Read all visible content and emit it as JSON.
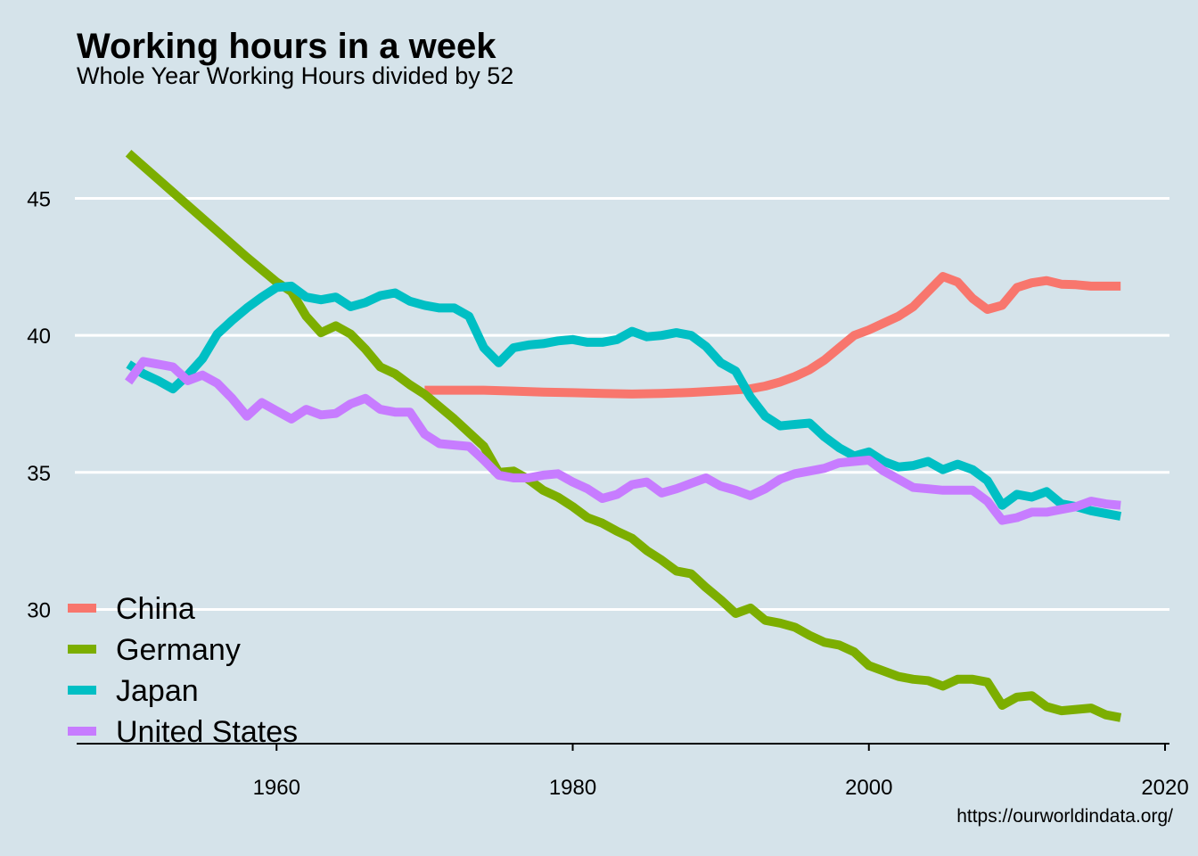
{
  "title": "Working hours in a week",
  "subtitle": "Whole Year Working Hours divided by 52",
  "caption": "https://ourworldindata.org/",
  "chart_data": {
    "type": "line",
    "title": "Working hours in a week",
    "subtitle": "Whole Year Working Hours divided by 52",
    "xlabel": "",
    "ylabel": "",
    "xlim": [
      1946.5,
      2020.3
    ],
    "ylim": [
      25.1,
      48.5
    ],
    "x_ticks": [
      1960,
      1980,
      2000,
      2020
    ],
    "x_tick_labels": [
      "1960",
      "1980",
      "2000",
      "2020"
    ],
    "y_ticks": [
      30,
      35,
      40,
      45
    ],
    "y_tick_labels": [
      "30",
      "35",
      "40",
      "45"
    ],
    "grid": "horizontal major only",
    "legend_position": "bottom-left",
    "series": [
      {
        "name": "China",
        "color": "#f8766d",
        "points": [
          [
            1970,
            38.0
          ],
          [
            1972,
            38.0
          ],
          [
            1974,
            38.0
          ],
          [
            1976,
            37.97
          ],
          [
            1978,
            37.93
          ],
          [
            1980,
            37.91
          ],
          [
            1982,
            37.88
          ],
          [
            1984,
            37.86
          ],
          [
            1986,
            37.88
          ],
          [
            1988,
            37.92
          ],
          [
            1990,
            37.98
          ],
          [
            1992,
            38.05
          ],
          [
            1993,
            38.15
          ],
          [
            1994,
            38.3
          ],
          [
            1995,
            38.5
          ],
          [
            1996,
            38.75
          ],
          [
            1997,
            39.1
          ],
          [
            1998,
            39.55
          ],
          [
            1999,
            40.0
          ],
          [
            2000,
            40.2
          ],
          [
            2001,
            40.45
          ],
          [
            2002,
            40.7
          ],
          [
            2003,
            41.05
          ],
          [
            2004,
            41.6
          ],
          [
            2005,
            42.15
          ],
          [
            2006,
            41.95
          ],
          [
            2007,
            41.35
          ],
          [
            2008,
            40.95
          ],
          [
            2009,
            41.1
          ],
          [
            2010,
            41.75
          ],
          [
            2011,
            41.92
          ],
          [
            2012,
            42.0
          ],
          [
            2013,
            41.87
          ],
          [
            2014,
            41.85
          ],
          [
            2015,
            41.8
          ],
          [
            2016,
            41.8
          ],
          [
            2017,
            41.8
          ]
        ]
      },
      {
        "name": "Germany",
        "color": "#7cae00",
        "points": [
          [
            1950,
            46.65
          ],
          [
            1952,
            45.7
          ],
          [
            1954,
            44.75
          ],
          [
            1956,
            43.8
          ],
          [
            1958,
            42.85
          ],
          [
            1960,
            41.95
          ],
          [
            1961,
            41.6
          ],
          [
            1962,
            40.7
          ],
          [
            1963,
            40.1
          ],
          [
            1964,
            40.35
          ],
          [
            1965,
            40.05
          ],
          [
            1966,
            39.5
          ],
          [
            1967,
            38.85
          ],
          [
            1968,
            38.6
          ],
          [
            1969,
            38.2
          ],
          [
            1970,
            37.85
          ],
          [
            1972,
            36.95
          ],
          [
            1974,
            35.95
          ],
          [
            1975,
            35.0
          ],
          [
            1976,
            35.05
          ],
          [
            1977,
            34.75
          ],
          [
            1978,
            34.35
          ],
          [
            1979,
            34.1
          ],
          [
            1980,
            33.75
          ],
          [
            1981,
            33.35
          ],
          [
            1982,
            33.15
          ],
          [
            1983,
            32.85
          ],
          [
            1984,
            32.6
          ],
          [
            1985,
            32.15
          ],
          [
            1986,
            31.8
          ],
          [
            1987,
            31.4
          ],
          [
            1988,
            31.3
          ],
          [
            1989,
            30.8
          ],
          [
            1990,
            30.35
          ],
          [
            1991,
            29.85
          ],
          [
            1992,
            30.05
          ],
          [
            1993,
            29.6
          ],
          [
            1994,
            29.5
          ],
          [
            1995,
            29.35
          ],
          [
            1996,
            29.05
          ],
          [
            1997,
            28.8
          ],
          [
            1998,
            28.7
          ],
          [
            1999,
            28.45
          ],
          [
            2000,
            27.95
          ],
          [
            2001,
            27.75
          ],
          [
            2002,
            27.55
          ],
          [
            2003,
            27.45
          ],
          [
            2004,
            27.4
          ],
          [
            2005,
            27.2
          ],
          [
            2006,
            27.45
          ],
          [
            2007,
            27.45
          ],
          [
            2008,
            27.35
          ],
          [
            2009,
            26.5
          ],
          [
            2010,
            26.8
          ],
          [
            2011,
            26.85
          ],
          [
            2012,
            26.45
          ],
          [
            2013,
            26.3
          ],
          [
            2014,
            26.35
          ],
          [
            2015,
            26.4
          ],
          [
            2016,
            26.15
          ],
          [
            2017,
            26.05
          ]
        ]
      },
      {
        "name": "Japan",
        "color": "#00bfc4",
        "points": [
          [
            1950,
            38.95
          ],
          [
            1951,
            38.6
          ],
          [
            1952,
            38.35
          ],
          [
            1953,
            38.05
          ],
          [
            1954,
            38.55
          ],
          [
            1955,
            39.15
          ],
          [
            1956,
            40.05
          ],
          [
            1957,
            40.55
          ],
          [
            1958,
            41.0
          ],
          [
            1959,
            41.4
          ],
          [
            1960,
            41.75
          ],
          [
            1961,
            41.8
          ],
          [
            1962,
            41.4
          ],
          [
            1963,
            41.3
          ],
          [
            1964,
            41.4
          ],
          [
            1965,
            41.05
          ],
          [
            1966,
            41.2
          ],
          [
            1967,
            41.45
          ],
          [
            1968,
            41.55
          ],
          [
            1969,
            41.25
          ],
          [
            1970,
            41.1
          ],
          [
            1971,
            41.0
          ],
          [
            1972,
            41.0
          ],
          [
            1973,
            40.7
          ],
          [
            1974,
            39.55
          ],
          [
            1975,
            39.0
          ],
          [
            1976,
            39.55
          ],
          [
            1977,
            39.65
          ],
          [
            1978,
            39.7
          ],
          [
            1979,
            39.8
          ],
          [
            1980,
            39.85
          ],
          [
            1981,
            39.75
          ],
          [
            1982,
            39.75
          ],
          [
            1983,
            39.85
          ],
          [
            1984,
            40.15
          ],
          [
            1985,
            39.95
          ],
          [
            1986,
            40.0
          ],
          [
            1987,
            40.1
          ],
          [
            1988,
            40.0
          ],
          [
            1989,
            39.6
          ],
          [
            1990,
            39.0
          ],
          [
            1991,
            38.7
          ],
          [
            1992,
            37.75
          ],
          [
            1993,
            37.05
          ],
          [
            1994,
            36.7
          ],
          [
            1995,
            36.75
          ],
          [
            1996,
            36.8
          ],
          [
            1997,
            36.3
          ],
          [
            1998,
            35.9
          ],
          [
            1999,
            35.6
          ],
          [
            2000,
            35.75
          ],
          [
            2001,
            35.4
          ],
          [
            2002,
            35.2
          ],
          [
            2003,
            35.25
          ],
          [
            2004,
            35.4
          ],
          [
            2005,
            35.1
          ],
          [
            2006,
            35.3
          ],
          [
            2007,
            35.1
          ],
          [
            2008,
            34.7
          ],
          [
            2009,
            33.8
          ],
          [
            2010,
            34.2
          ],
          [
            2011,
            34.1
          ],
          [
            2012,
            34.3
          ],
          [
            2013,
            33.85
          ],
          [
            2014,
            33.75
          ],
          [
            2015,
            33.6
          ],
          [
            2016,
            33.5
          ],
          [
            2017,
            33.4
          ]
        ]
      },
      {
        "name": "United States",
        "color": "#c77cff",
        "points": [
          [
            1950,
            38.3
          ],
          [
            1951,
            39.05
          ],
          [
            1952,
            38.95
          ],
          [
            1953,
            38.85
          ],
          [
            1954,
            38.35
          ],
          [
            1955,
            38.55
          ],
          [
            1956,
            38.25
          ],
          [
            1957,
            37.7
          ],
          [
            1958,
            37.05
          ],
          [
            1959,
            37.55
          ],
          [
            1960,
            37.25
          ],
          [
            1961,
            36.95
          ],
          [
            1962,
            37.3
          ],
          [
            1963,
            37.1
          ],
          [
            1964,
            37.15
          ],
          [
            1965,
            37.5
          ],
          [
            1966,
            37.7
          ],
          [
            1967,
            37.3
          ],
          [
            1968,
            37.2
          ],
          [
            1969,
            37.2
          ],
          [
            1970,
            36.4
          ],
          [
            1971,
            36.05
          ],
          [
            1972,
            36.0
          ],
          [
            1973,
            35.95
          ],
          [
            1974,
            35.45
          ],
          [
            1975,
            34.9
          ],
          [
            1976,
            34.8
          ],
          [
            1977,
            34.8
          ],
          [
            1978,
            34.9
          ],
          [
            1979,
            34.95
          ],
          [
            1980,
            34.65
          ],
          [
            1981,
            34.4
          ],
          [
            1982,
            34.05
          ],
          [
            1983,
            34.2
          ],
          [
            1984,
            34.55
          ],
          [
            1985,
            34.65
          ],
          [
            1986,
            34.25
          ],
          [
            1987,
            34.4
          ],
          [
            1988,
            34.6
          ],
          [
            1989,
            34.8
          ],
          [
            1990,
            34.5
          ],
          [
            1991,
            34.35
          ],
          [
            1992,
            34.15
          ],
          [
            1993,
            34.4
          ],
          [
            1994,
            34.75
          ],
          [
            1995,
            34.95
          ],
          [
            1996,
            35.05
          ],
          [
            1997,
            35.15
          ],
          [
            1998,
            35.35
          ],
          [
            1999,
            35.4
          ],
          [
            2000,
            35.45
          ],
          [
            2001,
            35.05
          ],
          [
            2002,
            34.75
          ],
          [
            2003,
            34.45
          ],
          [
            2004,
            34.4
          ],
          [
            2005,
            34.35
          ],
          [
            2006,
            34.35
          ],
          [
            2007,
            34.35
          ],
          [
            2008,
            33.95
          ],
          [
            2009,
            33.25
          ],
          [
            2010,
            33.35
          ],
          [
            2011,
            33.55
          ],
          [
            2012,
            33.55
          ],
          [
            2013,
            33.65
          ],
          [
            2014,
            33.75
          ],
          [
            2015,
            33.95
          ],
          [
            2016,
            33.85
          ],
          [
            2017,
            33.8
          ]
        ]
      }
    ]
  }
}
